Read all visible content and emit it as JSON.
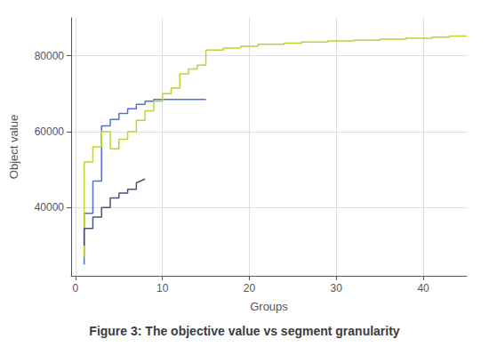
{
  "chart_data": {
    "type": "line",
    "title": "Figure 3: The objective value vs segment granularity",
    "xlabel": "Groups",
    "ylabel": "Object value",
    "xlim": [
      -0.5,
      45
    ],
    "ylim": [
      22000,
      90000
    ],
    "xticks": [
      0,
      10,
      20,
      30,
      40
    ],
    "yticks": [
      40000,
      60000,
      80000
    ],
    "grid": true,
    "series": [
      {
        "x": [
          1,
          1,
          2,
          2,
          3,
          3,
          4,
          4,
          5,
          5,
          6,
          6,
          7,
          7,
          8,
          8,
          9,
          9,
          15
        ],
        "values": [
          25000,
          38500,
          38500,
          47000,
          47000,
          61500,
          61500,
          63200,
          63200,
          64800,
          64800,
          66000,
          66000,
          67200,
          67200,
          68000,
          68000,
          68500,
          68500
        ]
      },
      {
        "x": [
          1,
          1,
          2,
          2,
          3,
          3,
          4,
          4,
          5,
          5,
          6,
          6,
          7,
          7,
          8,
          8,
          9,
          9,
          10,
          10,
          11,
          11,
          12,
          12,
          13,
          13,
          14,
          14,
          15,
          15,
          17,
          17,
          19,
          19,
          21,
          21,
          24,
          24,
          26,
          26,
          29,
          29,
          32,
          32,
          35,
          35,
          38,
          38,
          41,
          41,
          43,
          43,
          45
        ],
        "values": [
          27000,
          52000,
          52000,
          56000,
          56000,
          60000,
          60000,
          55500,
          55500,
          58000,
          58000,
          60000,
          60000,
          63000,
          63000,
          65500,
          65500,
          68000,
          68000,
          70000,
          70000,
          71500,
          71500,
          75200,
          75200,
          76500,
          76500,
          77500,
          77500,
          81500,
          81500,
          82000,
          82000,
          82500,
          82500,
          83000,
          83000,
          83300,
          83300,
          83600,
          83600,
          83900,
          83900,
          84100,
          84100,
          84400,
          84400,
          84600,
          84600,
          84900,
          84900,
          85200,
          85200
        ]
      },
      {
        "x": [
          1,
          1,
          2,
          2,
          3,
          3,
          4,
          4,
          5,
          5,
          6,
          6,
          7,
          7,
          8
        ],
        "values": [
          30000,
          34500,
          34500,
          37500,
          37500,
          40000,
          40000,
          42500,
          42500,
          43800,
          43800,
          44800,
          44800,
          46500,
          47500
        ]
      }
    ]
  }
}
